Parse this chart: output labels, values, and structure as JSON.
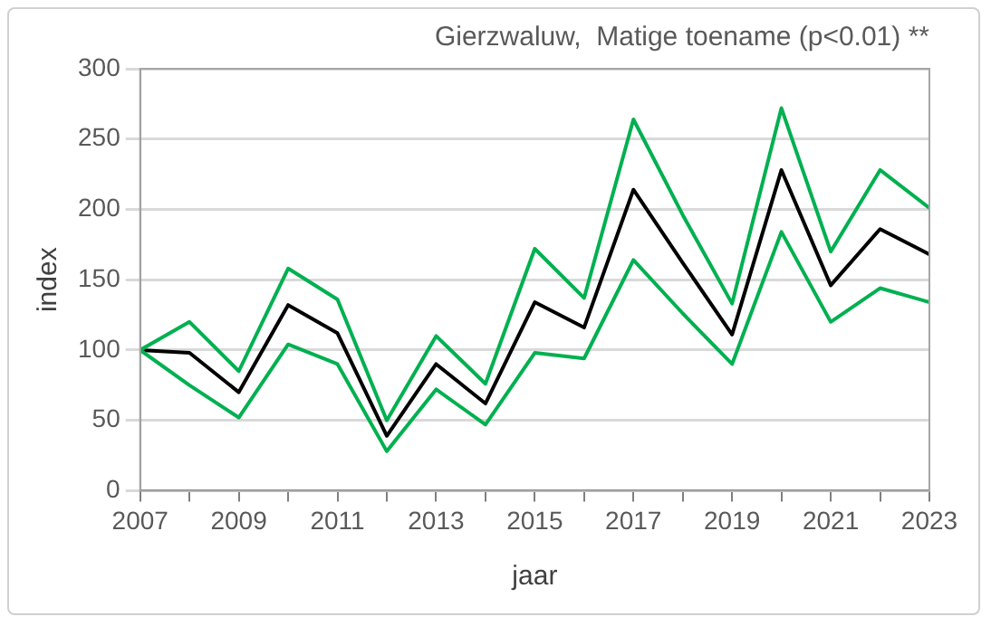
{
  "chart_data": {
    "type": "line",
    "title": "Gierzwaluw,  Matige toename (p<0.01) **",
    "xlabel": "jaar",
    "ylabel": "index",
    "x": [
      2007,
      2008,
      2009,
      2010,
      2011,
      2012,
      2013,
      2014,
      2015,
      2016,
      2017,
      2018,
      2019,
      2020,
      2021,
      2022,
      2023
    ],
    "series": [
      {
        "color": "#00b050",
        "values": [
          100,
          120,
          85,
          158,
          136,
          50,
          110,
          76,
          172,
          137,
          264,
          196,
          133,
          272,
          170,
          228,
          201
        ]
      },
      {
        "color": "#00b050",
        "values": [
          100,
          75,
          52,
          104,
          90,
          28,
          72,
          47,
          98,
          94,
          164,
          126,
          90,
          184,
          120,
          144,
          134
        ]
      },
      {
        "color": "#000000",
        "values": [
          100,
          98,
          70,
          132,
          112,
          39,
          90,
          62,
          134,
          116,
          214,
          162,
          111,
          228,
          146,
          186,
          168
        ]
      }
    ],
    "xlim": [
      2007,
      2023
    ],
    "ylim": [
      0,
      300
    ],
    "xticks": [
      2007,
      {
        "value": 2008,
        "label": null
      },
      2009,
      {
        "value": 2010,
        "label": null
      },
      2011,
      {
        "value": 2012,
        "label": null
      },
      2013,
      {
        "value": 2014,
        "label": null
      },
      2015,
      {
        "value": 2016,
        "label": null
      },
      2017,
      {
        "value": 2018,
        "label": null
      },
      2019,
      {
        "value": 2020,
        "label": null
      },
      2021,
      {
        "value": 2022,
        "label": null
      },
      2023
    ],
    "yticks": [
      0,
      50,
      100,
      150,
      200,
      250,
      300
    ],
    "grid": "y",
    "legend": false,
    "marker": "none",
    "line_style": "solid"
  }
}
